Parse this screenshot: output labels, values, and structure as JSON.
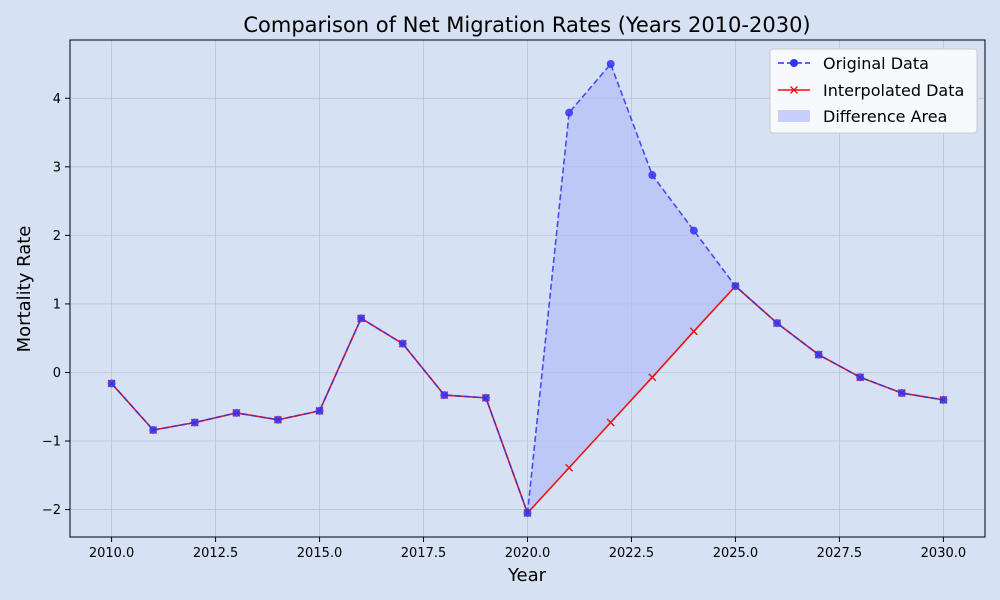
{
  "chart_data": {
    "type": "line",
    "title": "Comparison of Net Migration Rates (Years 2010-2030)",
    "xlabel": "Year",
    "ylabel": "Mortality Rate",
    "xlim": [
      2009,
      2031
    ],
    "ylim": [
      -2.4,
      4.85
    ],
    "x_ticks": [
      2010.0,
      2012.5,
      2015.0,
      2017.5,
      2020.0,
      2022.5,
      2025.0,
      2027.5,
      2030.0
    ],
    "x_tick_labels": [
      "2010.0",
      "2012.5",
      "2015.0",
      "2017.5",
      "2020.0",
      "2022.5",
      "2025.0",
      "2027.5",
      "2030.0"
    ],
    "y_ticks": [
      -2,
      -1,
      0,
      1,
      2,
      3,
      4
    ],
    "y_tick_labels": [
      "−2",
      "−1",
      "0",
      "1",
      "2",
      "3",
      "4"
    ],
    "grid": true,
    "legend_position": "top-right",
    "x": [
      2010,
      2011,
      2012,
      2013,
      2014,
      2015,
      2016,
      2017,
      2018,
      2019,
      2020,
      2021,
      2022,
      2023,
      2024,
      2025,
      2026,
      2027,
      2028,
      2029,
      2030
    ],
    "series": [
      {
        "name": "Original Data",
        "color": "#3333ee",
        "style": "dashed",
        "marker": "circle",
        "values": [
          -0.16,
          -0.84,
          -0.73,
          -0.59,
          -0.69,
          -0.56,
          0.79,
          0.42,
          -0.33,
          -0.37,
          -2.05,
          3.79,
          4.5,
          2.88,
          2.07,
          1.26,
          0.72,
          0.26,
          -0.07,
          -0.3,
          -0.4
        ]
      },
      {
        "name": "Interpolated Data",
        "color": "#ee1111",
        "style": "solid",
        "marker": "x",
        "values": [
          -0.16,
          -0.84,
          -0.73,
          -0.59,
          -0.69,
          -0.56,
          0.79,
          0.42,
          -0.33,
          -0.37,
          -2.05,
          -1.39,
          -0.73,
          -0.07,
          0.6,
          1.26,
          0.72,
          0.26,
          -0.07,
          -0.3,
          -0.4
        ]
      }
    ],
    "fill_between": {
      "name": "Difference Area",
      "color": "#b3bdf8",
      "between": [
        "Original Data",
        "Interpolated Data"
      ]
    }
  },
  "colors": {
    "figure_bg": "#d6e2f3",
    "grid": "#b8c4d4",
    "legend_bg": "#f7f9fd"
  }
}
